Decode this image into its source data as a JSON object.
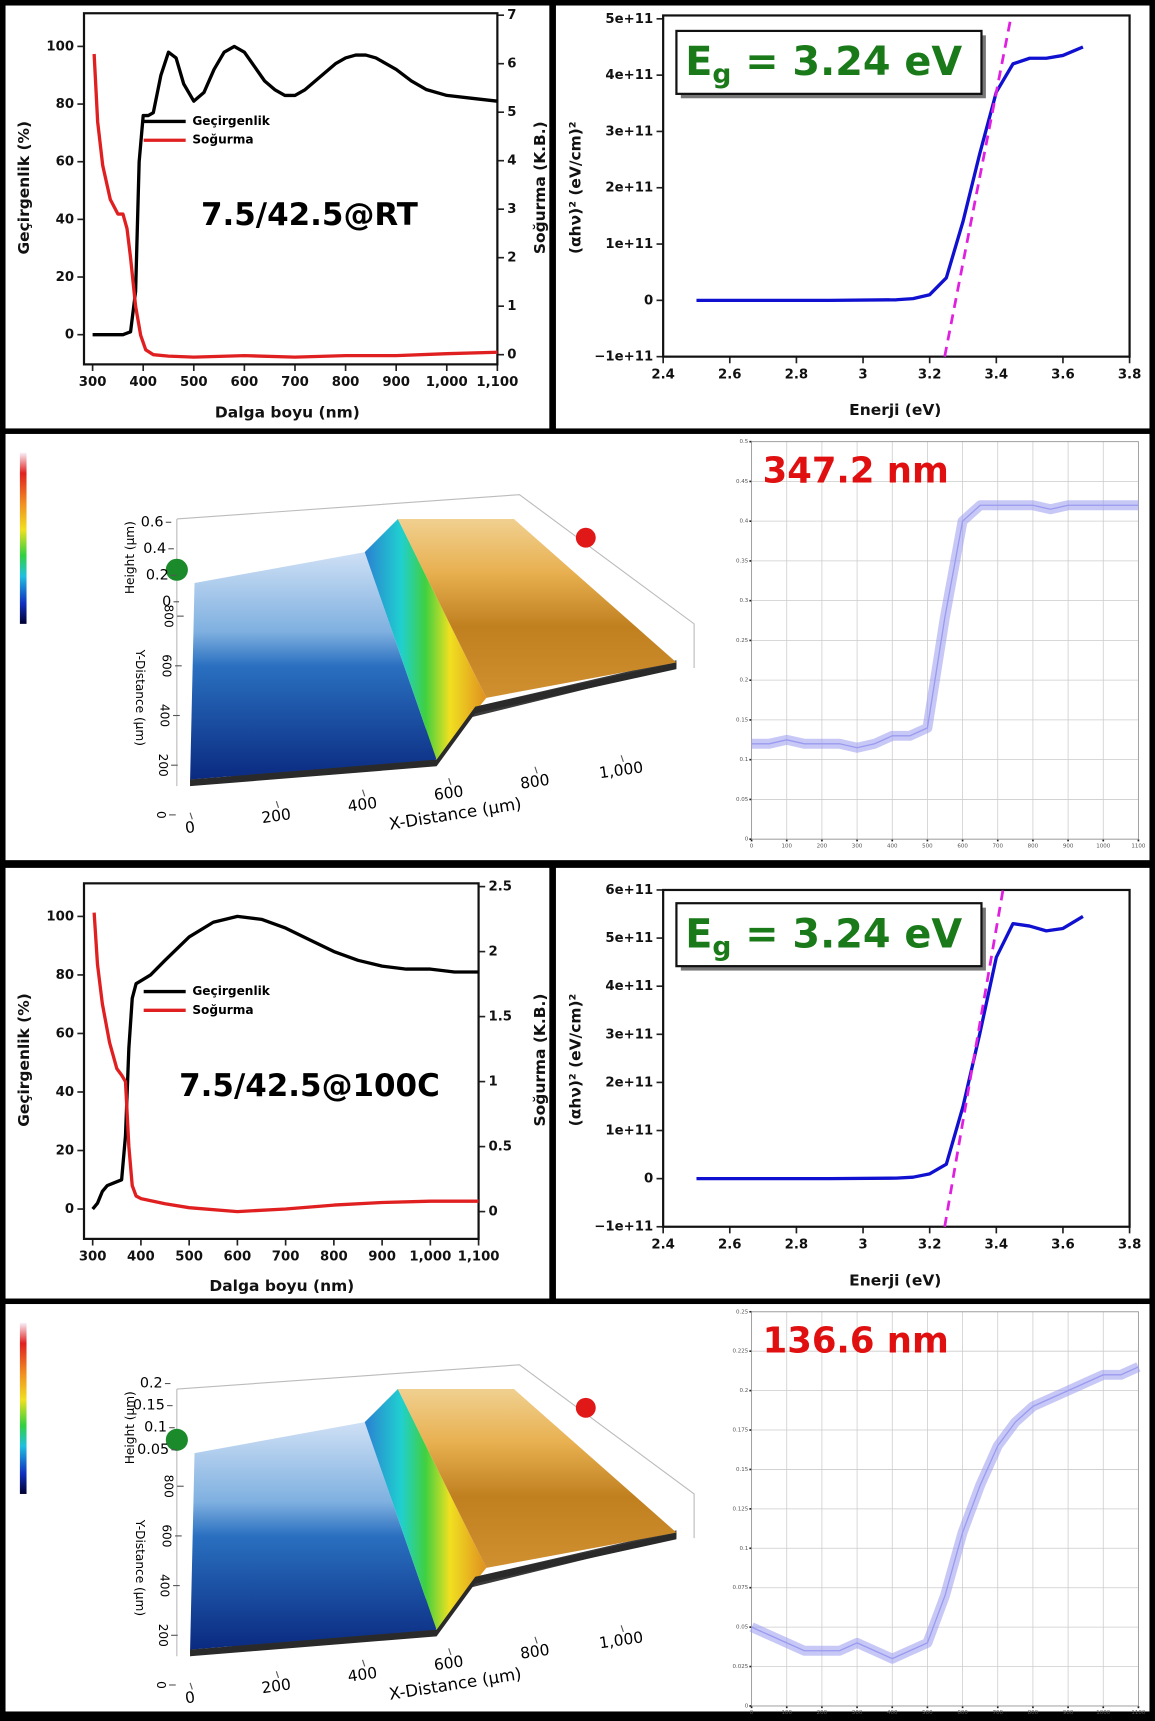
{
  "chart_data": [
    {
      "type": "line",
      "annotation": "7.5/42.5@RT",
      "annotation_color": "#000000",
      "xlabel": "Dalga boyu (nm)",
      "ylabel": "Geçirgenlik (%)",
      "y2label": "Soğurma (K.B.)",
      "xlim": [
        283,
        1100
      ],
      "xticks": [
        300,
        400,
        500,
        600,
        700,
        800,
        900,
        {
          "value": 1000,
          "label": "1,000"
        },
        {
          "value": 1100,
          "label": "1,100"
        }
      ],
      "ylim": [
        -10.3,
        111.5
      ],
      "yticks": [
        0,
        20,
        40,
        60,
        80,
        100
      ],
      "y2lim": [
        -0.2,
        7.04
      ],
      "y2ticks": [
        0,
        1,
        2,
        3,
        4,
        5,
        6,
        7
      ],
      "series": [
        {
          "name": "Geçirgenlik",
          "color": "#000000",
          "x": [
            300,
            320,
            340,
            360,
            375,
            385,
            392,
            400,
            410,
            420,
            435,
            450,
            465,
            480,
            500,
            520,
            540,
            560,
            580,
            600,
            620,
            640,
            660,
            680,
            700,
            720,
            740,
            760,
            780,
            800,
            820,
            840,
            860,
            880,
            900,
            930,
            960,
            1000,
            1050,
            1100
          ],
          "values": [
            0,
            0,
            0,
            0,
            1,
            15,
            60,
            76,
            76,
            77,
            90,
            98,
            96,
            87,
            81,
            84,
            92,
            98,
            100,
            98,
            93,
            88,
            85,
            83,
            83,
            85,
            88,
            91,
            94,
            96,
            97,
            97,
            96,
            94,
            92,
            88,
            85,
            83,
            82,
            81
          ]
        },
        {
          "name": "Soğurma",
          "color": "#e02020",
          "axis": "y2",
          "x": [
            303,
            310,
            320,
            335,
            350,
            360,
            368,
            375,
            385,
            395,
            405,
            420,
            450,
            500,
            600,
            700,
            800,
            900,
            1000,
            1100
          ],
          "values": [
            6.2,
            4.8,
            3.9,
            3.2,
            2.9,
            2.9,
            2.6,
            2.0,
            1.0,
            0.4,
            0.1,
            0,
            -0.03,
            -0.05,
            -0.02,
            -0.05,
            -0.02,
            -0.02,
            0.02,
            0.05
          ]
        }
      ]
    },
    {
      "type": "line",
      "annotation": [
        "E",
        "g",
        " = 3.24 eV"
      ],
      "annotation_color": "#1a7a1a",
      "xlabel": "Enerji (eV)",
      "ylabel": "(αhν)² (eV/cm)²",
      "xlim": [
        2.4,
        3.8
      ],
      "xticks": [
        2.4,
        2.6,
        2.8,
        3,
        3.2,
        3.4,
        3.6,
        3.8
      ],
      "ylim": [
        -100000000000,
        506000000000
      ],
      "yticks": [
        {
          "value": -100000000000,
          "label": "−1e+11"
        },
        0,
        {
          "value": 100000000000,
          "label": "1e+11"
        },
        {
          "value": 200000000000,
          "label": "2e+11"
        },
        {
          "value": 300000000000,
          "label": "3e+11"
        },
        {
          "value": 400000000000,
          "label": "4e+11"
        },
        {
          "value": 500000000000,
          "label": "5e+11"
        }
      ],
      "series": [
        {
          "color": "#1010d0",
          "x": [
            2.5,
            2.7,
            2.9,
            3.1,
            3.15,
            3.2,
            3.25,
            3.3,
            3.35,
            3.4,
            3.45,
            3.5,
            3.55,
            3.6,
            3.66
          ],
          "values": [
            0,
            0,
            0,
            1000000000,
            3000000000,
            10000000000,
            40000000000,
            140000000000,
            260000000000,
            370000000000,
            420000000000,
            430000000000,
            430000000000,
            435000000000,
            450000000000
          ]
        },
        {
          "color": "#e020e0",
          "dashed": true,
          "x": [
            3.245,
            3.445
          ],
          "values": [
            -100000000000,
            506000000000
          ]
        }
      ]
    },
    {
      "type": "surface3d",
      "xlabel": "X-Distance (µm)",
      "ylabel": "Y-Distance (µm)",
      "zlabel": "Height (µm)",
      "xlim": [
        0,
        1100
      ],
      "xticks": [
        0,
        200,
        400,
        600,
        800,
        {
          "value": 1000,
          "label": "1,000"
        }
      ],
      "ylim": [
        0,
        800
      ],
      "yticks": [
        0,
        200,
        400,
        600,
        800
      ],
      "zlim": [
        0,
        0.7
      ],
      "zticks": [
        0,
        0.2,
        0.4,
        0.6
      ]
    },
    {
      "type": "profile",
      "annotation": "347.2 nm",
      "annotation_color": "#e01010",
      "color": "#9a9af0",
      "grid": true,
      "xlim": [
        0,
        1100
      ],
      "xticks": [
        0,
        100,
        200,
        300,
        400,
        500,
        600,
        700,
        800,
        900,
        1000,
        1100
      ],
      "ylim": [
        0,
        0.5
      ],
      "yticks": [
        0,
        0.05,
        0.1,
        0.15,
        0.2,
        0.25,
        0.3,
        0.35,
        0.4,
        0.45,
        0.5
      ],
      "x": [
        0,
        50,
        100,
        150,
        200,
        250,
        300,
        350,
        400,
        450,
        500,
        550,
        600,
        650,
        700,
        750,
        800,
        850,
        900,
        950,
        1000,
        1050,
        1100
      ],
      "values": [
        0.12,
        0.12,
        0.125,
        0.12,
        0.12,
        0.12,
        0.115,
        0.12,
        0.13,
        0.13,
        0.14,
        0.28,
        0.4,
        0.42,
        0.42,
        0.42,
        0.42,
        0.415,
        0.42,
        0.42,
        0.42,
        0.42,
        0.42
      ]
    },
    {
      "type": "line",
      "annotation": "7.5/42.5@100C",
      "annotation_color": "#000000",
      "xlabel": "Dalga boyu (nm)",
      "ylabel": "Geçirgenlik (%)",
      "y2label": "Soğurma (K.B.)",
      "xlim": [
        282,
        1100
      ],
      "xticks": [
        300,
        400,
        500,
        600,
        700,
        800,
        900,
        {
          "value": 1000,
          "label": "1,000"
        },
        {
          "value": 1100,
          "label": "1,100"
        }
      ],
      "ylim": [
        -10.2,
        111.3
      ],
      "yticks": [
        0,
        20,
        40,
        60,
        80,
        100
      ],
      "y2lim": [
        -0.21,
        2.525
      ],
      "y2ticks": [
        0,
        0.5,
        1,
        1.5,
        2,
        2.5
      ],
      "series": [
        {
          "name": "Geçirgenlik",
          "color": "#000000",
          "x": [
            300,
            310,
            320,
            330,
            345,
            360,
            368,
            375,
            382,
            390,
            400,
            420,
            450,
            500,
            550,
            600,
            650,
            700,
            750,
            800,
            850,
            900,
            950,
            1000,
            1050,
            1100
          ],
          "values": [
            0,
            2,
            6,
            8,
            9,
            10,
            25,
            55,
            72,
            77,
            78,
            80,
            85,
            93,
            98,
            100,
            99,
            96,
            92,
            88,
            85,
            83,
            82,
            82,
            81,
            81
          ]
        },
        {
          "name": "Soğurma",
          "color": "#e02020",
          "axis": "y2",
          "x": [
            303,
            310,
            320,
            335,
            350,
            360,
            368,
            375,
            382,
            390,
            400,
            450,
            500,
            600,
            700,
            800,
            900,
            1000,
            1100
          ],
          "values": [
            2.3,
            1.9,
            1.6,
            1.3,
            1.1,
            1.05,
            1.0,
            0.5,
            0.2,
            0.12,
            0.1,
            0.06,
            0.03,
            0,
            0.02,
            0.05,
            0.07,
            0.08,
            0.08
          ]
        }
      ]
    },
    {
      "type": "line",
      "annotation": [
        "E",
        "g",
        " = 3.24 eV"
      ],
      "annotation_color": "#1a7a1a",
      "xlabel": "Enerji (eV)",
      "ylabel": "(αhν)² (eV/cm)²",
      "xlim": [
        2.4,
        3.8
      ],
      "xticks": [
        2.4,
        2.6,
        2.8,
        3,
        3.2,
        3.4,
        3.6,
        3.8
      ],
      "ylim": [
        -100000000000,
        600000000000
      ],
      "yticks": [
        {
          "value": -100000000000,
          "label": "−1e+11"
        },
        0,
        {
          "value": 100000000000,
          "label": "1e+11"
        },
        {
          "value": 200000000000,
          "label": "2e+11"
        },
        {
          "value": 300000000000,
          "label": "3e+11"
        },
        {
          "value": 400000000000,
          "label": "4e+11"
        },
        {
          "value": 500000000000,
          "label": "5e+11"
        },
        {
          "value": 600000000000,
          "label": "6e+11"
        }
      ],
      "series": [
        {
          "color": "#1010d0",
          "x": [
            2.5,
            2.7,
            2.9,
            3.1,
            3.15,
            3.2,
            3.25,
            3.3,
            3.35,
            3.4,
            3.45,
            3.5,
            3.55,
            3.6,
            3.66
          ],
          "values": [
            0,
            0,
            0,
            1000000000,
            3000000000,
            10000000000,
            30000000000,
            150000000000,
            300000000000,
            460000000000,
            530000000000,
            525000000000,
            515000000000,
            520000000000,
            545000000000
          ]
        },
        {
          "color": "#e020e0",
          "dashed": true,
          "x": [
            3.245,
            3.42
          ],
          "values": [
            -100000000000,
            600000000000
          ]
        }
      ]
    },
    {
      "type": "surface3d",
      "xlabel": "X-Distance (µm)",
      "ylabel": "Y-Distance (µm)",
      "zlabel": "Height (µm)",
      "xlim": [
        0,
        1100
      ],
      "xticks": [
        0,
        200,
        400,
        600,
        800,
        {
          "value": 1000,
          "label": "1,000"
        }
      ],
      "ylim": [
        0,
        800
      ],
      "yticks": [
        0,
        200,
        400,
        600,
        800
      ],
      "zlim": [
        0,
        0.21
      ],
      "zticks": [
        0.05,
        0.1,
        0.15,
        0.2
      ]
    },
    {
      "type": "profile",
      "annotation": "136.6 nm",
      "annotation_color": "#e01010",
      "color": "#9a9af0",
      "grid": true,
      "xlim": [
        0,
        1100
      ],
      "xticks": [
        0,
        100,
        200,
        300,
        400,
        500,
        600,
        700,
        800,
        900,
        1000,
        1100
      ],
      "ylim": [
        0,
        0.25
      ],
      "yticks": [
        0,
        0.025,
        0.05,
        0.075,
        0.1,
        0.125,
        0.15,
        0.175,
        0.2,
        0.225,
        0.25
      ],
      "x": [
        0,
        50,
        100,
        150,
        200,
        250,
        300,
        350,
        400,
        450,
        500,
        550,
        600,
        650,
        700,
        750,
        800,
        850,
        900,
        950,
        1000,
        1050,
        1100
      ],
      "values": [
        0.05,
        0.045,
        0.04,
        0.035,
        0.035,
        0.035,
        0.04,
        0.035,
        0.03,
        0.035,
        0.04,
        0.07,
        0.11,
        0.14,
        0.165,
        0.18,
        0.19,
        0.195,
        0.2,
        0.205,
        0.21,
        0.21,
        0.215
      ]
    }
  ]
}
